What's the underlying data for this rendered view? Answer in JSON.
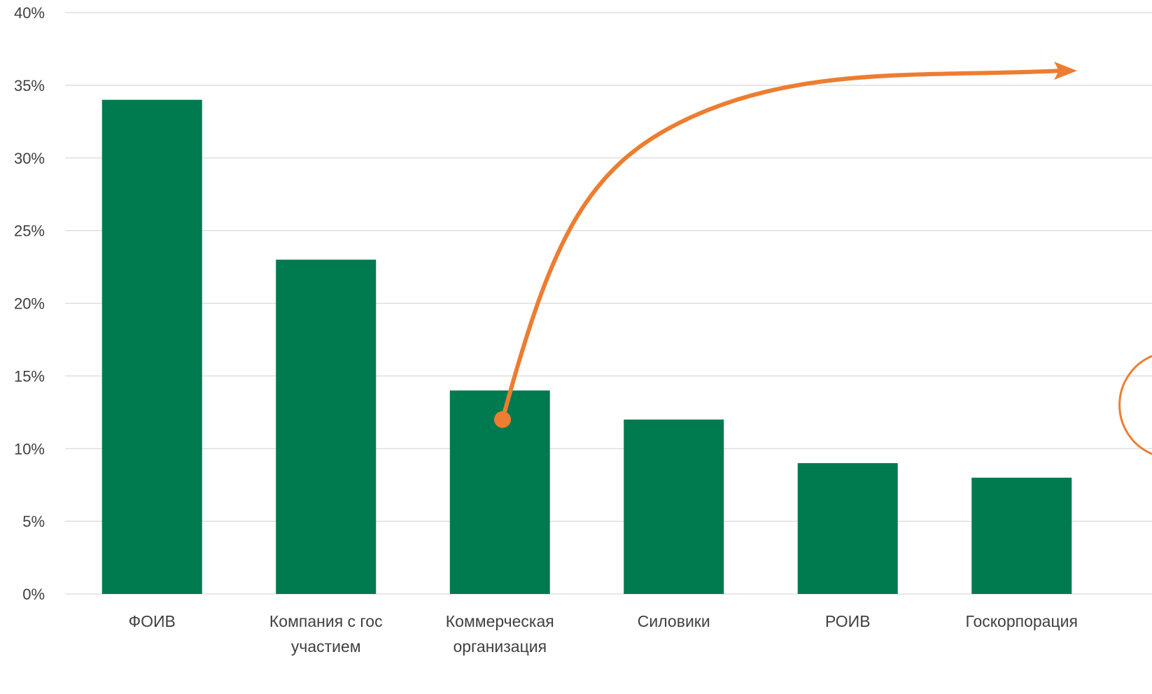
{
  "chart_data": {
    "type": "bar",
    "categories": [
      [
        "ФОИВ"
      ],
      [
        "Компания с гос",
        "участием"
      ],
      [
        "Коммерческая",
        "организация"
      ],
      [
        "Силовики"
      ],
      [
        "РОИВ"
      ],
      [
        "Госкорпорация"
      ]
    ],
    "values": [
      34,
      23,
      14,
      12,
      9,
      8
    ],
    "ylim": [
      0,
      40
    ],
    "yticks": [
      0,
      5,
      10,
      15,
      20,
      25,
      30,
      35,
      40
    ],
    "ytick_labels": [
      "0%",
      "5%",
      "10%",
      "15%",
      "20%",
      "25%",
      "30%",
      "35%",
      "40%"
    ],
    "title": "",
    "xlabel": "",
    "ylabel": "",
    "grid": true,
    "legend": "none",
    "colors": {
      "bar": "#007A4F",
      "grid": "#D9D9D9",
      "text": "#404040",
      "annotation": "#ED7D31"
    },
    "annotations": [
      {
        "type": "curved-arrow",
        "from_category": "Коммерческая организация",
        "from_value": 12,
        "to": "right-edge",
        "to_value": 36
      },
      {
        "type": "circle-highlight",
        "near_category": "Госкорпорация",
        "value": 13
      }
    ]
  }
}
